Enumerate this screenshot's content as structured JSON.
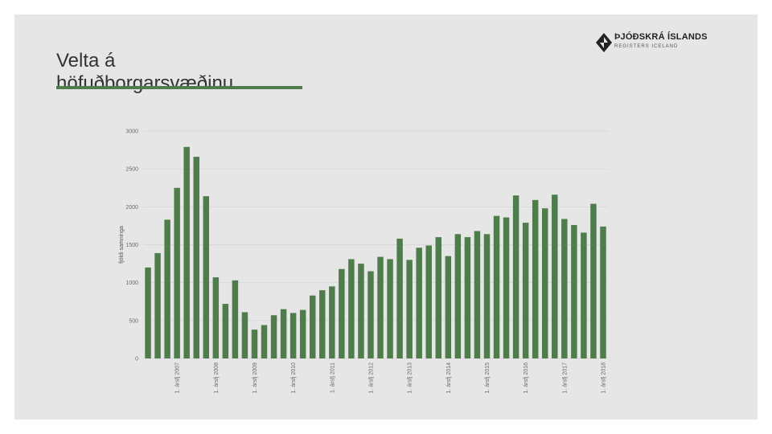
{
  "slide": {
    "title": "Velta á höfuðborgarsvæðinu",
    "accent_color": "#4e7d4b"
  },
  "logo": {
    "name": "ÞJÓÐSKRÁ ÍSLANDS",
    "subtitle": "REGISTERS ICELAND",
    "icon": "diamond-logo-icon"
  },
  "chart_data": {
    "type": "bar",
    "title": "",
    "xlabel": "",
    "ylabel": "fjöldi samninga",
    "ylim": [
      0,
      3000
    ],
    "yticks": [
      0,
      500,
      1000,
      1500,
      2000,
      2500,
      3000
    ],
    "grid": true,
    "bar_color": "#4e7d4b",
    "x_tick_labels": [
      "1. ársfj 2007",
      "1. ársfj 2008",
      "1. ársfj 2009",
      "1. ársfj 2010",
      "1. ársfj 2011",
      "1. ársfj 2012",
      "1. ársfj 2013",
      "1. ársfj 2014",
      "1. ársfj 2015",
      "1. ársfj 2016",
      "1. ársfj 2017",
      "1. ársfj 2018"
    ],
    "values": [
      1200,
      1390,
      1830,
      2250,
      2790,
      2660,
      2140,
      1070,
      720,
      1030,
      610,
      380,
      440,
      570,
      650,
      600,
      640,
      830,
      900,
      950,
      1180,
      1310,
      1250,
      1150,
      1340,
      1310,
      1580,
      1300,
      1460,
      1490,
      1600,
      1350,
      1640,
      1600,
      1680,
      1640,
      1880,
      1860,
      2150,
      1790,
      2090,
      1980,
      2160,
      1840,
      1760,
      1660,
      2040,
      1740
    ]
  }
}
